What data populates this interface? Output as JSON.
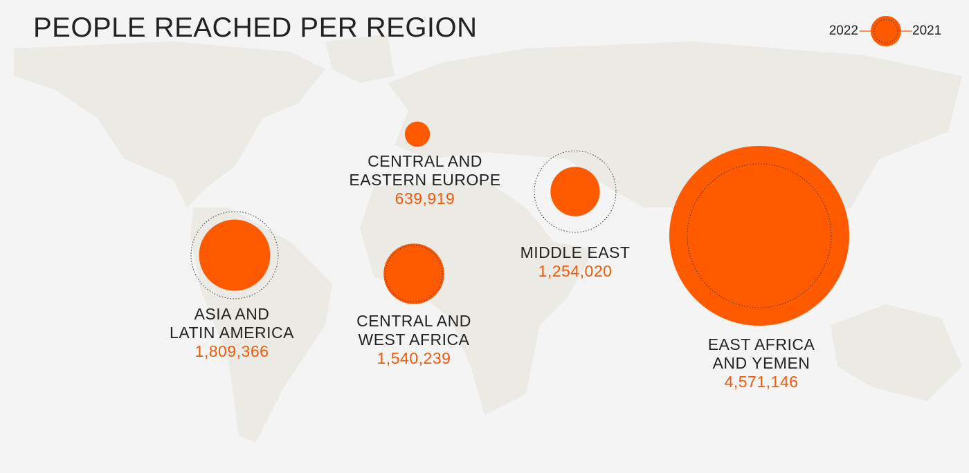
{
  "chart_data": {
    "type": "bubble",
    "title": "PEOPLE REACHED PER REGION",
    "categories": [
      "ASIA AND\nLATIN AMERICA",
      "CENTRAL AND\nEASTERN EUROPE",
      "CENTRAL AND\nWEST AFRICA",
      "MIDDLE EAST",
      "EAST AFRICA\nAND YEMEN"
    ],
    "series": [
      {
        "name": "2022",
        "color": "#ff5a00",
        "values": [
          1809366,
          639919,
          1540239,
          1254020,
          4571146
        ],
        "value_labels": [
          "1,809,366",
          "639,919",
          "1,540,239",
          "1,254,020",
          "4,571,146"
        ]
      },
      {
        "name": "2021",
        "color": "#333333",
        "values": [
          2215000,
          null,
          1440000,
          2075000,
          3657000
        ]
      }
    ]
  }
}
